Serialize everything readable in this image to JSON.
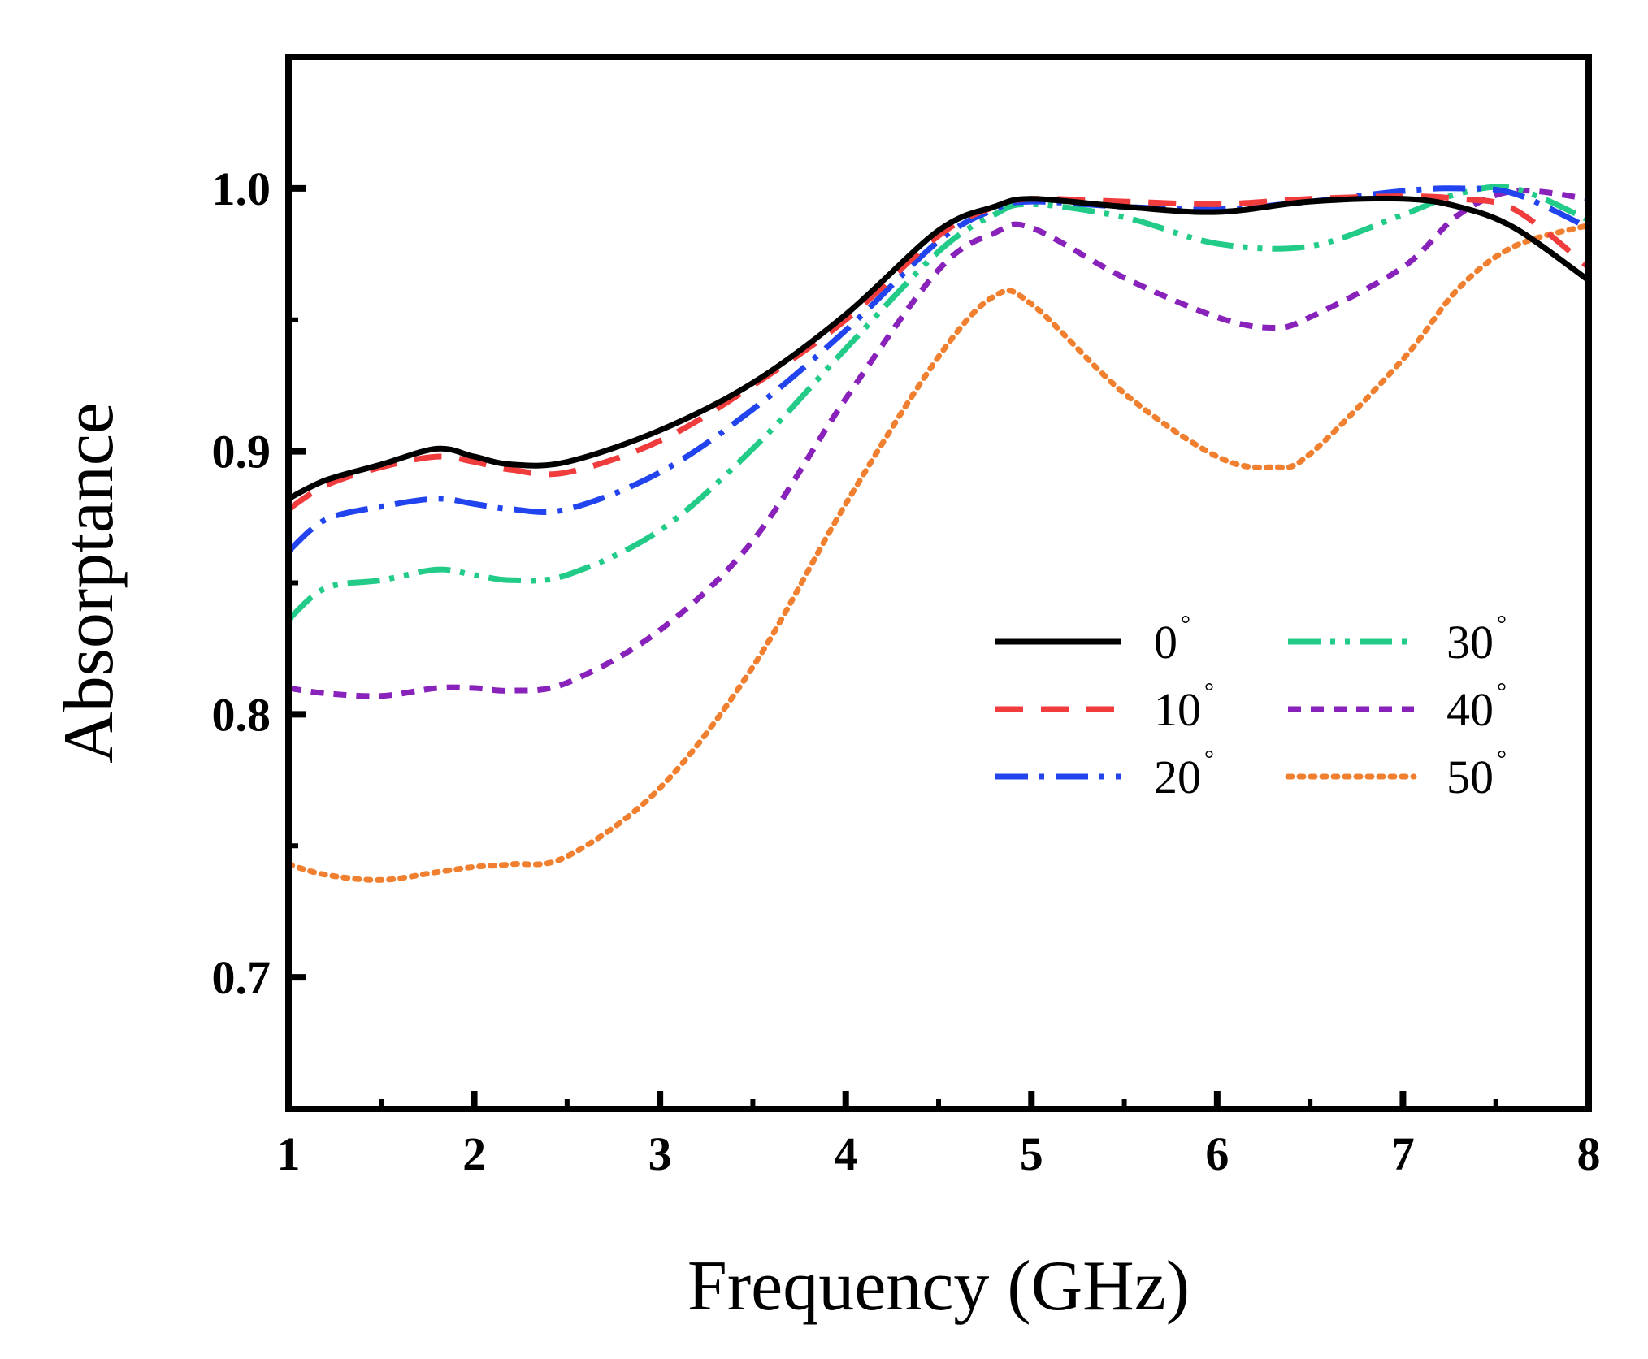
{
  "chart_data": {
    "type": "line",
    "title": "",
    "xlabel": "Frequency (GHz)",
    "ylabel": "Absorptance",
    "xlim": [
      1,
      8
    ],
    "ylim": [
      0.65,
      1.05
    ],
    "xticks": [
      1,
      2,
      3,
      4,
      5,
      6,
      7,
      8
    ],
    "xtick_labels": [
      "1",
      "2",
      "3",
      "4",
      "5",
      "6",
      "7",
      "8"
    ],
    "yticks": [
      0.7,
      0.8,
      0.9,
      1.0
    ],
    "ytick_labels": [
      "0.7",
      "0.8",
      "0.9",
      "1.0"
    ],
    "grid": false,
    "legend_position": "center-right",
    "degree_symbol": "°",
    "series": [
      {
        "name": "0",
        "color": "#000000",
        "dash": "solid",
        "x": [
          1,
          1.2,
          1.5,
          1.8,
          2,
          2.2,
          2.5,
          3,
          3.5,
          4,
          4.5,
          4.8,
          5,
          5.5,
          6,
          6.5,
          7,
          7.3,
          7.6,
          8
        ],
        "y": [
          0.882,
          0.889,
          0.895,
          0.901,
          0.898,
          0.895,
          0.896,
          0.908,
          0.926,
          0.952,
          0.984,
          0.993,
          0.996,
          0.993,
          0.991,
          0.995,
          0.996,
          0.993,
          0.985,
          0.965
        ]
      },
      {
        "name": "10",
        "color": "#F03C3C",
        "dash": "dashed",
        "x": [
          1,
          1.2,
          1.5,
          1.8,
          2,
          2.2,
          2.5,
          3,
          3.5,
          4,
          4.5,
          4.8,
          5,
          5.5,
          6,
          6.5,
          7,
          7.3,
          7.6,
          8
        ],
        "y": [
          0.878,
          0.887,
          0.894,
          0.898,
          0.896,
          0.893,
          0.892,
          0.904,
          0.925,
          0.95,
          0.982,
          0.993,
          0.996,
          0.995,
          0.994,
          0.996,
          0.997,
          0.996,
          0.992,
          0.97
        ]
      },
      {
        "name": "20",
        "color": "#2244EE",
        "dash": "dashdot",
        "x": [
          1,
          1.2,
          1.5,
          1.8,
          2,
          2.2,
          2.5,
          3,
          3.5,
          4,
          4.5,
          4.8,
          5,
          5.5,
          6,
          6.5,
          7,
          7.3,
          7.6,
          8
        ],
        "y": [
          0.862,
          0.874,
          0.879,
          0.882,
          0.88,
          0.878,
          0.878,
          0.892,
          0.916,
          0.946,
          0.98,
          0.992,
          0.995,
          0.993,
          0.992,
          0.995,
          0.999,
          1.0,
          0.998,
          0.985
        ]
      },
      {
        "name": "30",
        "color": "#22CC88",
        "dash": "dashdotdot",
        "x": [
          1,
          1.2,
          1.5,
          1.8,
          2,
          2.2,
          2.5,
          3,
          3.5,
          4,
          4.5,
          4.8,
          5,
          5.5,
          6,
          6.5,
          7,
          7.3,
          7.6,
          8
        ],
        "y": [
          0.836,
          0.848,
          0.851,
          0.855,
          0.853,
          0.851,
          0.853,
          0.87,
          0.901,
          0.939,
          0.976,
          0.99,
          0.994,
          0.989,
          0.979,
          0.978,
          0.99,
          0.998,
          1.0,
          0.988
        ]
      },
      {
        "name": "40",
        "color": "#8822BB",
        "dash": "shortdash",
        "x": [
          1,
          1.2,
          1.5,
          1.8,
          2,
          2.2,
          2.5,
          3,
          3.5,
          4,
          4.5,
          4.8,
          5,
          5.5,
          6,
          6.3,
          6.5,
          7,
          7.3,
          7.6,
          8
        ],
        "y": [
          0.81,
          0.808,
          0.807,
          0.81,
          0.81,
          0.809,
          0.812,
          0.832,
          0.866,
          0.92,
          0.969,
          0.983,
          0.985,
          0.966,
          0.951,
          0.947,
          0.951,
          0.97,
          0.99,
          0.999,
          0.996
        ]
      },
      {
        "name": "50",
        "color": "#F08030",
        "dash": "dotted",
        "x": [
          1,
          1.2,
          1.5,
          1.8,
          2,
          2.2,
          2.5,
          3,
          3.5,
          4,
          4.5,
          4.8,
          5,
          5.5,
          6,
          6.3,
          6.5,
          7,
          7.3,
          7.6,
          8
        ],
        "y": [
          0.743,
          0.739,
          0.737,
          0.74,
          0.742,
          0.743,
          0.746,
          0.772,
          0.818,
          0.88,
          0.936,
          0.959,
          0.956,
          0.922,
          0.898,
          0.894,
          0.899,
          0.935,
          0.962,
          0.978,
          0.986
        ]
      }
    ]
  }
}
